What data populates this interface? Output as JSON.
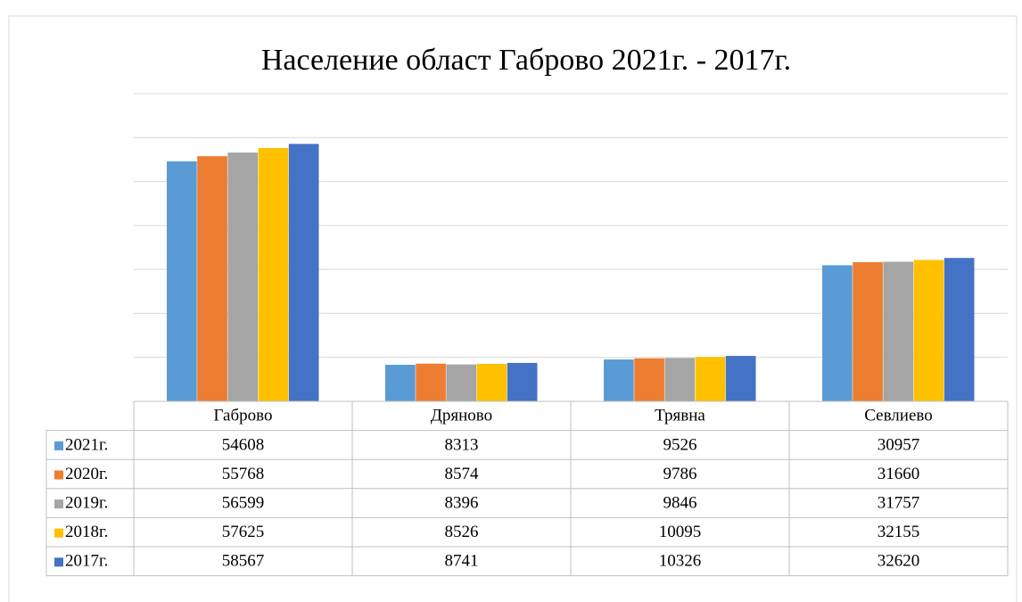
{
  "chart_data": {
    "type": "bar",
    "title": "Население област Габрово 2021г. - 2017г.",
    "categories": [
      "Габрово",
      "Дряново",
      "Трявна",
      "Севлиево"
    ],
    "series": [
      {
        "name": "2021г.",
        "color": "#5b9bd5",
        "values": [
          54608,
          8313,
          9526,
          30957
        ]
      },
      {
        "name": "2020г.",
        "color": "#ed7d31",
        "values": [
          55768,
          8574,
          9786,
          31660
        ]
      },
      {
        "name": "2019г.",
        "color": "#a5a5a5",
        "values": [
          56599,
          8396,
          9846,
          31757
        ]
      },
      {
        "name": "2018г.",
        "color": "#ffc000",
        "values": [
          57625,
          8526,
          10095,
          32155
        ]
      },
      {
        "name": "2017г.",
        "color": "#4472c4",
        "values": [
          58567,
          8741,
          10326,
          32620
        ]
      }
    ],
    "ylim": [
      0,
      70000
    ],
    "yticks": [
      0,
      10000,
      20000,
      30000,
      40000,
      50000,
      60000,
      70000
    ],
    "grid": true
  }
}
